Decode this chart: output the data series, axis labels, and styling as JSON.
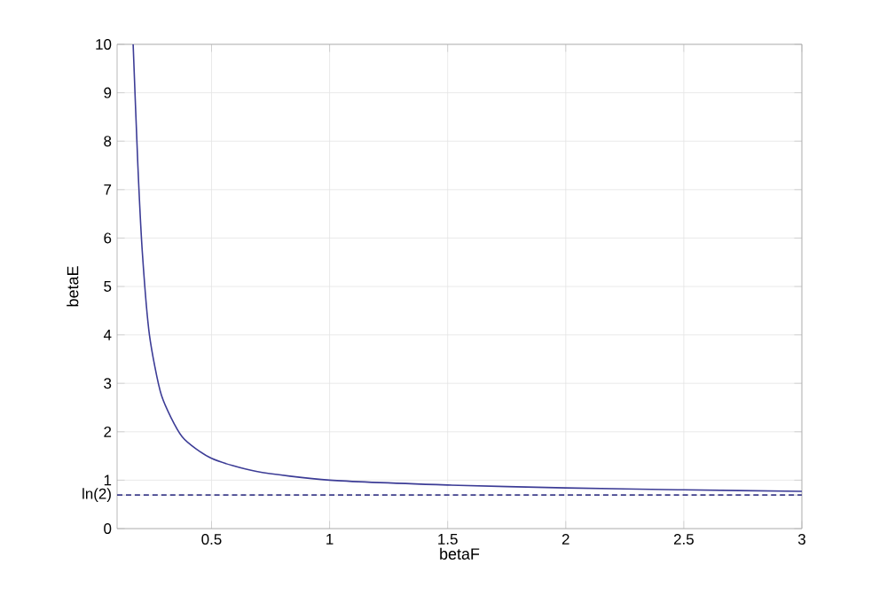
{
  "chart_data": {
    "type": "line",
    "xlabel": "betaF",
    "ylabel": "betaE",
    "x": [
      0.168,
      0.188,
      0.207,
      0.237,
      0.288,
      0.375,
      0.5,
      0.69,
      1.0,
      1.5,
      2.0,
      2.5,
      3.0
    ],
    "series": [
      {
        "color": "#3c3c96",
        "values": [
          10,
          7.5,
          5.7,
          4.0,
          2.75,
          1.9,
          1.45,
          1.18,
          1.0,
          0.9,
          0.84,
          0.8,
          0.77
        ]
      }
    ],
    "xlim": [
      0.1,
      3
    ],
    "ylim": [
      0,
      10
    ],
    "xticks": [
      0.5,
      1,
      1.5,
      2,
      2.5,
      3
    ],
    "yticks": [
      0,
      {
        "value": 0.693,
        "label": "ln(2)"
      },
      1,
      2,
      3,
      4,
      5,
      6,
      7,
      8,
      9,
      10
    ],
    "ref_lines": [
      {
        "axis": "y",
        "value": 0.693,
        "color": "#40408c",
        "line_style": "dashed"
      }
    ],
    "grid": true,
    "line_style": "solid",
    "marker": "none"
  }
}
